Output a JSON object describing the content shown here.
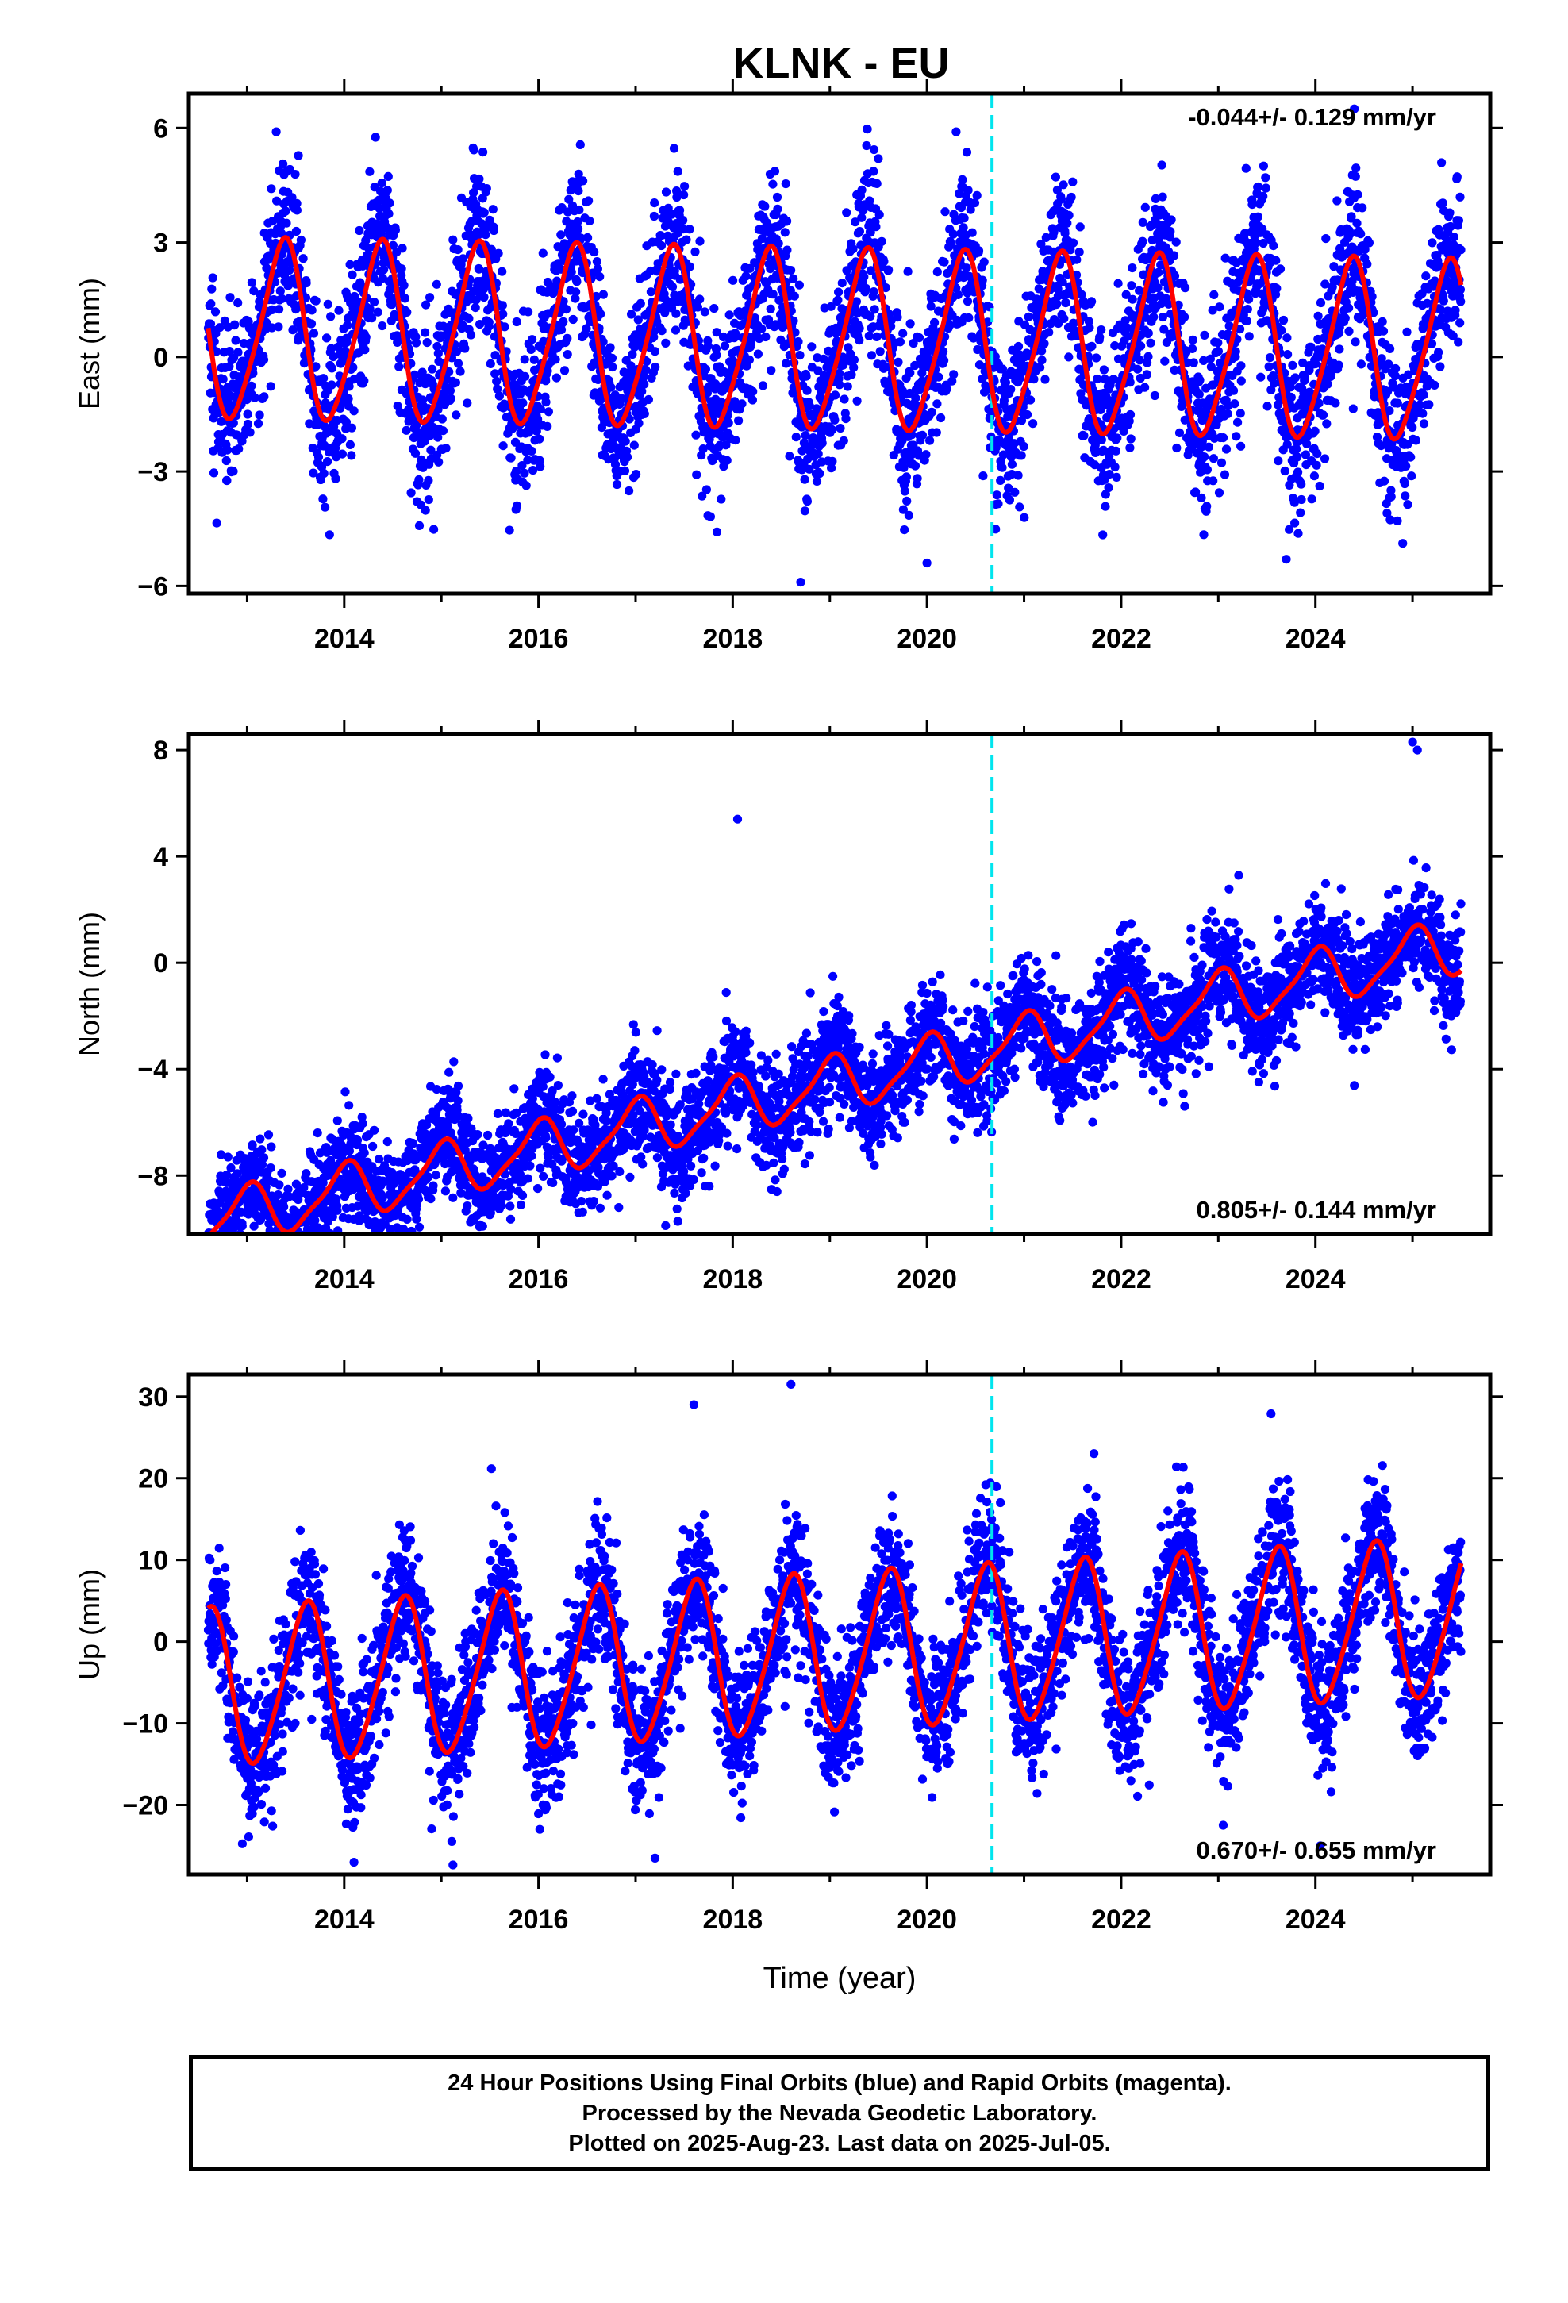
{
  "title": "KLNK - EU",
  "xlabel": "Time (year)",
  "colors": {
    "data": "#0000ff",
    "model": "#ff0000",
    "break": "#00e5ee",
    "frame": "#000000"
  },
  "footer": {
    "line1": "24 Hour Positions Using Final Orbits (blue) and Rapid Orbits (magenta).",
    "line2": "Processed by the Nevada Geodetic Laboratory.",
    "line3": "Plotted on 2025-Aug-23. Last data on 2025-Jul-05."
  },
  "chart_data": [
    {
      "type": "scatter",
      "component": "east",
      "ylabel": "East (mm)",
      "rate_text": "-0.044+/- 0.129 mm/yr",
      "rate_position": "top-right",
      "xlim": [
        2012.4,
        2025.8
      ],
      "ylim": [
        -6.2,
        6.9
      ],
      "xticks": [
        2014,
        2016,
        2018,
        2020,
        2022,
        2024
      ],
      "yticks": [
        -6,
        -3,
        0,
        3,
        6
      ],
      "ytick_labels": [
        "−6",
        "−3",
        "0",
        "3",
        "6"
      ],
      "data_range": [
        2012.6,
        2025.5
      ],
      "trend_mm_per_yr": -0.044,
      "offset_mm": 0.4,
      "annual_amplitude_mm": 2.3,
      "annual_peak_year_fraction": 0.36,
      "semiannual_amplitude_mm": 0.35,
      "scatter_sd_mm": 1.1,
      "equipment_change_year": 2020.67,
      "outlier_points": [
        [
          2018.7,
          -5.9
        ],
        [
          2020.0,
          -5.4
        ],
        [
          2023.7,
          -5.3
        ],
        [
          2024.4,
          6.5
        ],
        [
          2013.3,
          5.9
        ],
        [
          2020.3,
          5.9
        ]
      ]
    },
    {
      "type": "scatter",
      "component": "north",
      "ylabel": "North (mm)",
      "rate_text": "0.805+/- 0.144 mm/yr",
      "rate_position": "bottom-right",
      "xlim": [
        2012.4,
        2025.8
      ],
      "ylim": [
        -10.2,
        8.6
      ],
      "xticks": [
        2014,
        2016,
        2018,
        2020,
        2022,
        2024
      ],
      "yticks": [
        -8,
        -4,
        0,
        4,
        8
      ],
      "ytick_labels": [
        "−8",
        "−4",
        "0",
        "4",
        "8"
      ],
      "data_range": [
        2012.6,
        2025.5
      ],
      "trend_mm_per_yr": 0.805,
      "offset_mm": -4.6,
      "annual_amplitude_mm": 1.0,
      "annual_peak_year_fraction": 0.0,
      "semiannual_amplitude_mm": 0.25,
      "scatter_sd_mm": 1.05,
      "equipment_change_year": 2020.67,
      "outlier_points": [
        [
          2012.95,
          -9.9
        ],
        [
          2018.05,
          5.4
        ],
        [
          2025.0,
          8.3
        ],
        [
          2025.05,
          8.0
        ],
        [
          2012.9,
          -8.6
        ]
      ]
    },
    {
      "type": "scatter",
      "component": "up",
      "ylabel": "Up (mm)",
      "rate_text": "0.670+/- 0.655 mm/yr",
      "rate_position": "bottom-right",
      "xlim": [
        2012.4,
        2025.8
      ],
      "ylim": [
        -28.5,
        32.7
      ],
      "xticks": [
        2014,
        2016,
        2018,
        2020,
        2022,
        2024
      ],
      "yticks": [
        -20,
        -10,
        0,
        10,
        20,
        30
      ],
      "ytick_labels": [
        "−20",
        "−10",
        "0",
        "10",
        "20",
        "30"
      ],
      "data_range": [
        2012.6,
        2025.5
      ],
      "trend_mm_per_yr": 0.67,
      "offset_mm": -1.5,
      "annual_amplitude_mm": 9.5,
      "annual_peak_year_fraction": 0.6,
      "semiannual_amplitude_mm": 1.2,
      "scatter_sd_mm": 4.3,
      "equipment_change_year": 2020.67,
      "outlier_points": [
        [
          2018.6,
          31.5
        ],
        [
          2017.6,
          29.0
        ],
        [
          2014.1,
          -27.0
        ],
        [
          2017.2,
          -26.5
        ],
        [
          2024.05,
          -25.0
        ]
      ]
    }
  ]
}
